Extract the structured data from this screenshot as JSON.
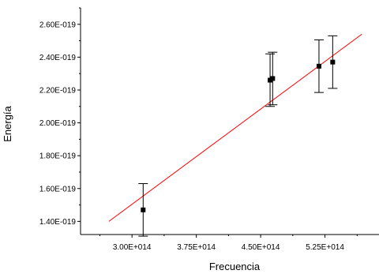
{
  "chart_data": {
    "type": "scatter",
    "title": "",
    "xlabel": "Frecuencia",
    "ylabel": "Energía",
    "xlim": [
      240000000000000.0,
      588000000000000.0
    ],
    "ylim": [
      1.32e-19,
      2.7e-19
    ],
    "x_ticks": [
      300000000000000.0,
      375000000000000.0,
      450000000000000.0,
      525000000000000.0
    ],
    "x_tick_labels": [
      "3.00E+014",
      "3.75E+014",
      "4.50E+014",
      "5.25E+014"
    ],
    "y_ticks": [
      1.4e-19,
      1.6e-19,
      1.8e-19,
      2e-19,
      2.2e-19,
      2.4e-19,
      2.6e-19
    ],
    "y_tick_labels": [
      "1.40E-019",
      "1.60E-019",
      "1.80E-019",
      "2.00E-019",
      "2.20E-019",
      "2.40E-019",
      "2.60E-019"
    ],
    "grid": false,
    "points": [
      {
        "x": 313000000000000.0,
        "y": 1.47e-19,
        "yerr": 1.6e-20
      },
      {
        "x": 461000000000000.0,
        "y": 2.26e-19,
        "yerr": 1.6e-20
      },
      {
        "x": 464000000000000.0,
        "y": 2.27e-19,
        "yerr": 1.6e-20
      },
      {
        "x": 518000000000000.0,
        "y": 2.345e-19,
        "yerr": 1.6e-20
      },
      {
        "x": 534000000000000.0,
        "y": 2.37e-19,
        "yerr": 1.6e-20
      }
    ],
    "fit_line": {
      "x": [
        273000000000000.0,
        568000000000000.0
      ],
      "y": [
        1.4e-19,
        2.54e-19
      ],
      "color": "#ff0000"
    },
    "marker_color": "#000000"
  }
}
